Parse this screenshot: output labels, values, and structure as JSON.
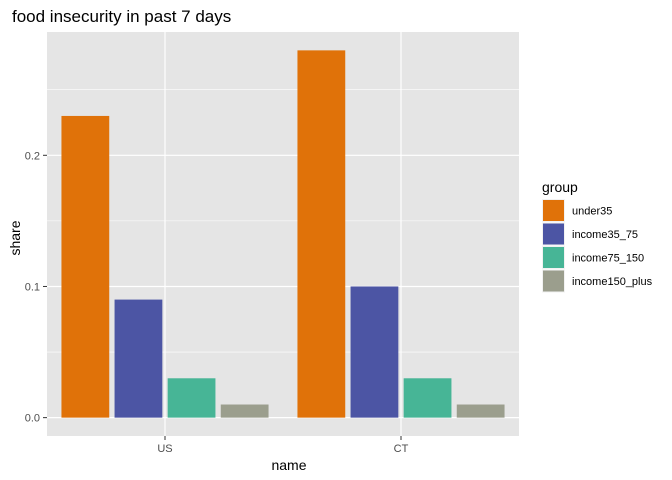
{
  "chart_data": {
    "type": "bar",
    "title": "food insecurity in past 7 days",
    "xlabel": "name",
    "ylabel": "share",
    "categories": [
      "US",
      "CT"
    ],
    "series": [
      {
        "name": "under35",
        "values": [
          0.23,
          0.28
        ],
        "color": "#E07209"
      },
      {
        "name": "income35_75",
        "values": [
          0.09,
          0.1
        ],
        "color": "#4C55A4"
      },
      {
        "name": "income75_150",
        "values": [
          0.03,
          0.03
        ],
        "color": "#47B596"
      },
      {
        "name": "income150_plus",
        "values": [
          0.01,
          0.01
        ],
        "color": "#9B9E8D"
      }
    ],
    "ylim": [
      -0.014,
      0.294
    ],
    "yticks": [
      0.0,
      0.1,
      0.2
    ],
    "ytick_labels": [
      "0.0",
      "0.1",
      "0.2"
    ],
    "grid": true,
    "legend": {
      "title": "group",
      "position": "right"
    },
    "colors": {
      "panel_background": "#E5E5E5",
      "grid": "#FFFFFF"
    }
  }
}
